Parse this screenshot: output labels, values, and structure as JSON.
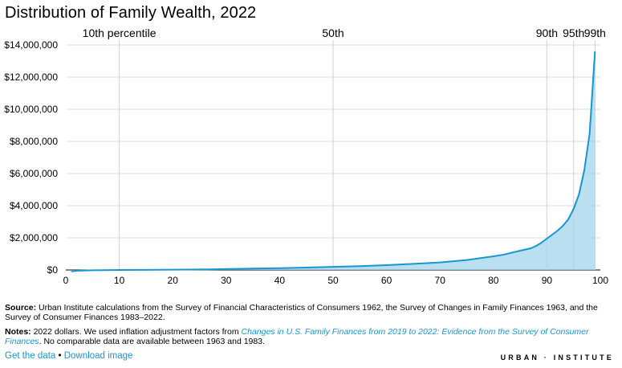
{
  "title": "Distribution of Family Wealth, 2022",
  "chart_data": {
    "type": "area",
    "title": "Distribution of Family Wealth, 2022",
    "xlabel": "",
    "ylabel": "",
    "xlim": [
      0,
      100
    ],
    "ylim": [
      0,
      14000000
    ],
    "x_ticks": [
      0,
      10,
      20,
      30,
      40,
      50,
      60,
      70,
      80,
      90,
      100
    ],
    "y_ticks": [
      0,
      2000000,
      4000000,
      6000000,
      8000000,
      10000000,
      12000000,
      14000000
    ],
    "y_tick_labels": [
      "$0",
      "$2,000,000",
      "$4,000,000",
      "$6,000,000",
      "$8,000,000",
      "$10,000,000",
      "$12,000,000",
      "$14,000,000"
    ],
    "grid": "y",
    "color": "#1696d2",
    "fill_color": "#a2d4ec",
    "reference_lines": [
      {
        "x": 10,
        "label": "10th percentile"
      },
      {
        "x": 50,
        "label": "50th"
      },
      {
        "x": 90,
        "label": "90th"
      },
      {
        "x": 95,
        "label": "95th"
      },
      {
        "x": 99,
        "label": "99th"
      }
    ],
    "x": [
      1,
      2,
      5,
      10,
      15,
      20,
      25,
      30,
      35,
      40,
      45,
      50,
      55,
      60,
      65,
      70,
      75,
      80,
      82,
      85,
      87,
      88,
      89,
      90,
      91,
      92,
      93,
      94,
      95,
      96,
      97,
      98,
      99
    ],
    "values": [
      -90000,
      -50000,
      -20000,
      0,
      8000,
      18000,
      30000,
      55000,
      85000,
      110000,
      150000,
      192000,
      240000,
      300000,
      380000,
      470000,
      620000,
      850000,
      960000,
      1200000,
      1350000,
      1500000,
      1700000,
      1950000,
      2200000,
      2450000,
      2750000,
      3150000,
      3800000,
      4700000,
      6200000,
      8500000,
      13600000
    ]
  },
  "footer": {
    "source_label": "Source:",
    "source_text": "Urban Institute calculations from the Survey of Financial Characteristics of Consumers 1962, the Survey of Changes in Family Finances 1963, and the Survey of Consumer Finances 1983–2022.",
    "notes_label": "Notes:",
    "notes_pre": "2022 dollars. We used inflation adjustment factors from ",
    "notes_link": "Changes in U.S. Family Finances from 2019 to 2022: Evidence from the Survey of Consumer Finances",
    "notes_post": ". No comparable data are available between 1963 and 1983.",
    "get_data": "Get the data",
    "separator": "•",
    "download_image": "Download image",
    "brand": "URBAN · INSTITUTE"
  }
}
